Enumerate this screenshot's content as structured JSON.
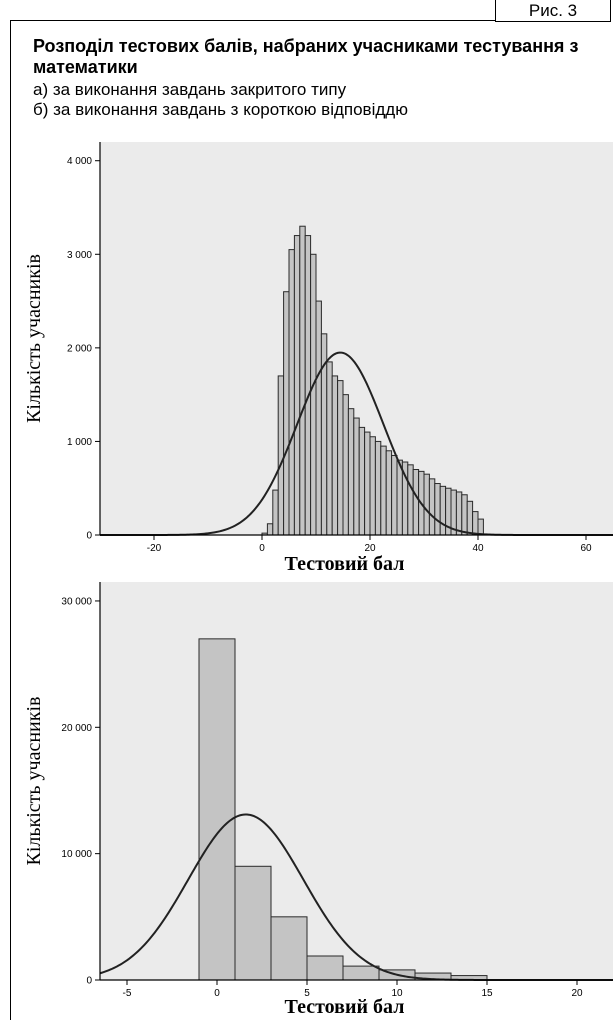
{
  "figure": {
    "label": "Рис. 3",
    "title": "Розподіл тестових балів, набраних учасниками тестування з математики",
    "subtitle_a": "а) за виконання завдань закритого типу",
    "subtitle_b": "б) за виконання завдань з короткою відповіддю"
  },
  "chart_data": [
    {
      "type": "bar",
      "subtype": "histogram",
      "xlabel": "Тестовий бал",
      "ylabel": "Кількість учасників",
      "xlim": [
        -30,
        65
      ],
      "ylim": [
        0,
        4200
      ],
      "xticks": [
        -20,
        0,
        20,
        40,
        60
      ],
      "xtick_labels": [
        "-20",
        "0",
        "20",
        "40",
        "60"
      ],
      "yticks": [
        0,
        1000,
        2000,
        3000,
        4000
      ],
      "ytick_labels": [
        "0",
        "1 000",
        "2 000",
        "3 000",
        "4 000"
      ],
      "bin_width": 1,
      "bins_start": [
        0,
        1,
        2,
        3,
        4,
        5,
        6,
        7,
        8,
        9,
        10,
        11,
        12,
        13,
        14,
        15,
        16,
        17,
        18,
        19,
        20,
        21,
        22,
        23,
        24,
        25,
        26,
        27,
        28,
        29,
        30,
        31,
        32,
        33,
        34,
        35,
        36,
        37,
        38,
        39,
        40
      ],
      "values": [
        20,
        120,
        480,
        1700,
        2600,
        3050,
        3200,
        3300,
        3200,
        3000,
        2500,
        2150,
        1850,
        1700,
        1650,
        1500,
        1350,
        1250,
        1150,
        1100,
        1050,
        1000,
        950,
        900,
        850,
        800,
        780,
        750,
        700,
        680,
        650,
        600,
        550,
        520,
        500,
        480,
        460,
        430,
        360,
        250,
        170
      ],
      "normal_curve": {
        "mean": 14.5,
        "sd": 8.0,
        "peak": 1950
      },
      "grid": false,
      "legend": "none"
    },
    {
      "type": "bar",
      "subtype": "histogram",
      "xlabel": "Тестовий бал",
      "ylabel": "Кількість учасників",
      "xlim": [
        -6.5,
        22
      ],
      "ylim": [
        0,
        31500
      ],
      "xticks": [
        -5,
        0,
        5,
        10,
        15,
        20
      ],
      "xtick_labels": [
        "-5",
        "0",
        "5",
        "10",
        "15",
        "20"
      ],
      "yticks": [
        0,
        10000,
        20000,
        30000
      ],
      "ytick_labels": [
        "0",
        "10 000",
        "20 000",
        "30 000"
      ],
      "bin_width": 2,
      "bins_start": [
        -1,
        1,
        3,
        5,
        7,
        9,
        11,
        13
      ],
      "values": [
        27000,
        9000,
        5000,
        1900,
        1100,
        800,
        550,
        350
      ],
      "normal_curve": {
        "mean": 1.6,
        "sd": 3.2,
        "peak": 13100
      },
      "grid": false,
      "legend": "none"
    }
  ]
}
